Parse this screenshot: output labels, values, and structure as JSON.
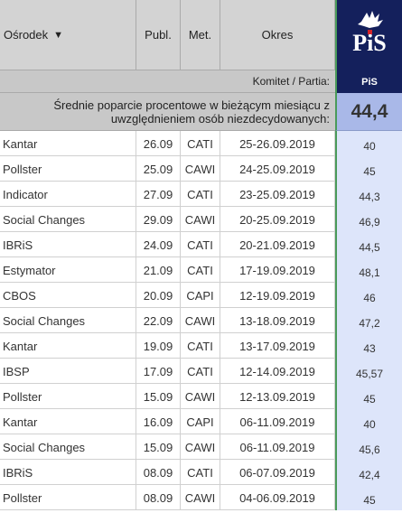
{
  "header": {
    "osrodek": "Ośrodek",
    "sort_arrow": "▼",
    "publ": "Publ.",
    "met": "Met.",
    "okres": "Okres"
  },
  "party": {
    "logo_text": "PiS",
    "label": "Komitet / Partia:",
    "short": "PiS",
    "colors": {
      "navy": "#14205c",
      "red": "#d3242b"
    }
  },
  "average": {
    "label_line1": "Średnie poparcie procentowe w bieżącym miesiącu z",
    "label_line2": "uwzględnieniem osób niezdecydowanych:",
    "value": "44,4"
  },
  "rows": [
    {
      "osrodek": "Kantar",
      "publ": "26.09",
      "met": "CATI",
      "okres": "25-26.09.2019",
      "val": "40"
    },
    {
      "osrodek": "Pollster",
      "publ": "25.09",
      "met": "CAWI",
      "okres": "24-25.09.2019",
      "val": "45"
    },
    {
      "osrodek": "Indicator",
      "publ": "27.09",
      "met": "CATI",
      "okres": "23-25.09.2019",
      "val": "44,3"
    },
    {
      "osrodek": "Social Changes",
      "publ": "29.09",
      "met": "CAWI",
      "okres": "20-25.09.2019",
      "val": "46,9"
    },
    {
      "osrodek": "IBRiS",
      "publ": "24.09",
      "met": "CATI",
      "okres": "20-21.09.2019",
      "val": "44,5"
    },
    {
      "osrodek": "Estymator",
      "publ": "21.09",
      "met": "CATI",
      "okres": "17-19.09.2019",
      "val": "48,1"
    },
    {
      "osrodek": "CBOS",
      "publ": "20.09",
      "met": "CAPI",
      "okres": "12-19.09.2019",
      "val": "46"
    },
    {
      "osrodek": "Social Changes",
      "publ": "22.09",
      "met": "CAWI",
      "okres": "13-18.09.2019",
      "val": "47,2"
    },
    {
      "osrodek": "Kantar",
      "publ": "19.09",
      "met": "CATI",
      "okres": "13-17.09.2019",
      "val": "43"
    },
    {
      "osrodek": "IBSP",
      "publ": "17.09",
      "met": "CATI",
      "okres": "12-14.09.2019",
      "val": "45,57"
    },
    {
      "osrodek": "Pollster",
      "publ": "15.09",
      "met": "CAWI",
      "okres": "12-13.09.2019",
      "val": "45"
    },
    {
      "osrodek": "Kantar",
      "publ": "16.09",
      "met": "CAPI",
      "okres": "06-11.09.2019",
      "val": "40"
    },
    {
      "osrodek": "Social Changes",
      "publ": "15.09",
      "met": "CAWI",
      "okres": "06-11.09.2019",
      "val": "45,6"
    },
    {
      "osrodek": "IBRiS",
      "publ": "08.09",
      "met": "CATI",
      "okres": "06-07.09.2019",
      "val": "42,4"
    },
    {
      "osrodek": "Pollster",
      "publ": "08.09",
      "met": "CAWI",
      "okres": "04-06.09.2019",
      "val": "45"
    }
  ]
}
